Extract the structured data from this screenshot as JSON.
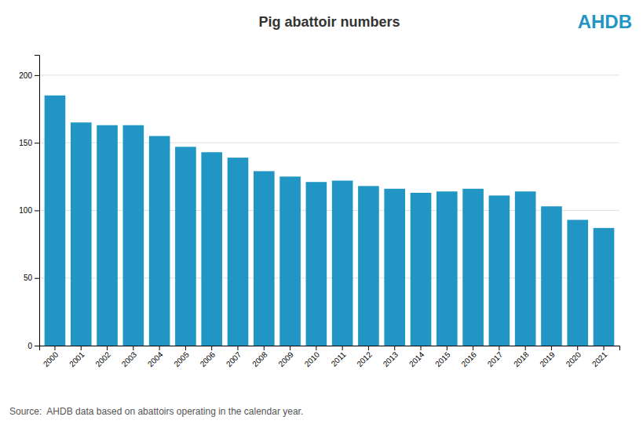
{
  "chart_data": {
    "type": "bar",
    "title": "Pig abattoir numbers",
    "categories": [
      "2000",
      "2001",
      "2002",
      "2003",
      "2004",
      "2005",
      "2006",
      "2007",
      "2008",
      "2009",
      "2010",
      "2011",
      "2012",
      "2013",
      "2014",
      "2015",
      "2016",
      "2017",
      "2018",
      "2019",
      "2020",
      "2021"
    ],
    "values": [
      185,
      165,
      163,
      163,
      155,
      147,
      143,
      139,
      129,
      125,
      121,
      122,
      118,
      116,
      113,
      114,
      116,
      111,
      114,
      103,
      93,
      87
    ],
    "color": "#2196c4",
    "ylim": [
      0,
      215
    ],
    "yticks": [
      0,
      50,
      100,
      150,
      200
    ],
    "grid": true,
    "annotations": [
      "Source:  AHDB data based on abattoirs operating in the calendar year.",
      "AHDB"
    ]
  }
}
